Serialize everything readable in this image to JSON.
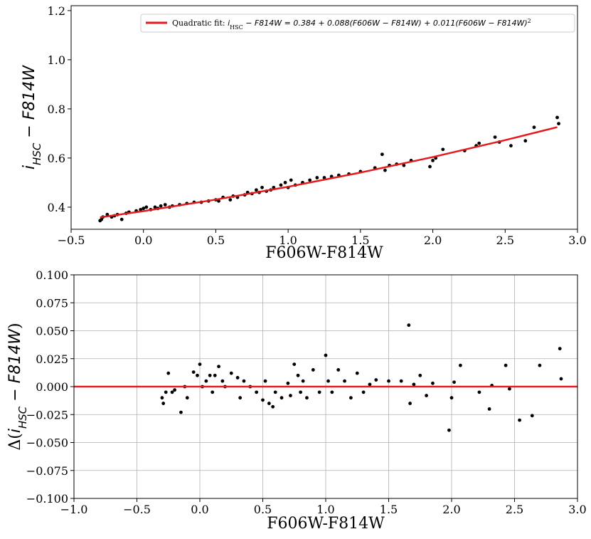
{
  "chart_data": [
    {
      "type": "scatter",
      "xlabel": "F606W-F814W",
      "ylabel_parts": [
        "i",
        "HSC",
        " − F814W"
      ],
      "xlim": [
        -0.5,
        3.0
      ],
      "ylim": [
        0.31,
        1.22
      ],
      "xticks": [
        {
          "value": -0.5,
          "label": "−0.5"
        },
        {
          "value": 0,
          "label": "0.0"
        },
        0.5,
        {
          "value": 1,
          "label": "1.0"
        },
        1.5,
        {
          "value": 2,
          "label": "2.0"
        },
        2.5,
        {
          "value": 3,
          "label": "3.0"
        }
      ],
      "yticks": [
        0.4,
        0.6,
        0.8,
        {
          "value": 1,
          "label": "1.0"
        },
        1.2
      ],
      "grid": false,
      "points": {
        "color": "#000000",
        "x": [
          -0.3,
          -0.29,
          -0.28,
          -0.25,
          -0.22,
          -0.2,
          -0.18,
          -0.15,
          -0.12,
          -0.1,
          -0.05,
          -0.02,
          0.0,
          0.02,
          0.05,
          0.08,
          0.1,
          0.12,
          0.15,
          0.18,
          0.2,
          0.25,
          0.3,
          0.35,
          0.4,
          0.45,
          0.5,
          0.52,
          0.55,
          0.6,
          0.62,
          0.65,
          0.7,
          0.72,
          0.75,
          0.78,
          0.8,
          0.82,
          0.85,
          0.88,
          0.9,
          0.95,
          0.98,
          1.0,
          1.02,
          1.05,
          1.1,
          1.15,
          1.2,
          1.25,
          1.3,
          1.35,
          1.42,
          1.5,
          1.6,
          1.65,
          1.67,
          1.7,
          1.75,
          1.8,
          1.85,
          1.98,
          2.0,
          2.02,
          2.07,
          2.22,
          2.3,
          2.32,
          2.43,
          2.46,
          2.54,
          2.64,
          2.7,
          2.86,
          2.87
        ],
        "values": [
          0.345,
          0.35,
          0.36,
          0.37,
          0.36,
          0.365,
          0.37,
          0.35,
          0.375,
          0.38,
          0.385,
          0.39,
          0.395,
          0.4,
          0.39,
          0.4,
          0.395,
          0.405,
          0.41,
          0.4,
          0.405,
          0.41,
          0.415,
          0.42,
          0.42,
          0.425,
          0.43,
          0.425,
          0.44,
          0.43,
          0.445,
          0.44,
          0.45,
          0.46,
          0.455,
          0.47,
          0.46,
          0.48,
          0.465,
          0.47,
          0.48,
          0.49,
          0.5,
          0.48,
          0.51,
          0.49,
          0.5,
          0.51,
          0.52,
          0.52,
          0.525,
          0.53,
          0.535,
          0.545,
          0.56,
          0.615,
          0.55,
          0.57,
          0.575,
          0.57,
          0.59,
          0.565,
          0.59,
          0.6,
          0.635,
          0.63,
          0.65,
          0.66,
          0.685,
          0.665,
          0.65,
          0.67,
          0.725,
          0.765,
          0.74
        ]
      },
      "fit": {
        "color": "#e41a1c",
        "legend_parts": [
          "Quadratic fit: ",
          "i",
          "HSC",
          " − F814W = 0.384 + 0.088(F606W − F814W) + 0.011(F606W − F814W)",
          "2"
        ],
        "x": [
          -0.3,
          0,
          0.5,
          1,
          1.5,
          2,
          2.5,
          2.86
        ],
        "values": [
          0.3586,
          0.384,
          0.4308,
          0.483,
          0.5408,
          0.604,
          0.6728,
          0.7257
        ]
      }
    },
    {
      "type": "scatter",
      "xlabel": "F606W-F814W",
      "ylabel_parts": [
        "Δ(",
        "i",
        "HSC",
        " − F814W",
        ")"
      ],
      "xlim": [
        -1.0,
        3.0
      ],
      "ylim": [
        -0.1,
        0.1
      ],
      "xticks": [
        {
          "value": -1,
          "label": "−1.0"
        },
        {
          "value": -0.5,
          "label": "−0.5"
        },
        {
          "value": 0,
          "label": "0.0"
        },
        0.5,
        {
          "value": 1,
          "label": "1.0"
        },
        1.5,
        {
          "value": 2,
          "label": "2.0"
        },
        2.5,
        {
          "value": 3,
          "label": "3.0"
        }
      ],
      "yticks": [
        {
          "value": -0.1,
          "label": "−0.100"
        },
        {
          "value": -0.075,
          "label": "−0.075"
        },
        {
          "value": -0.05,
          "label": "−0.050"
        },
        {
          "value": -0.025,
          "label": "−0.025"
        },
        {
          "value": 0,
          "label": "0.000"
        },
        0.025,
        {
          "value": 0.05,
          "label": "0.050"
        },
        0.075,
        {
          "value": 0.1,
          "label": "0.100"
        }
      ],
      "grid": true,
      "points": {
        "color": "#000000",
        "x": [
          -0.3,
          -0.29,
          -0.27,
          -0.25,
          -0.22,
          -0.2,
          -0.15,
          -0.12,
          -0.1,
          -0.05,
          -0.02,
          0.0,
          0.02,
          0.05,
          0.08,
          0.1,
          0.12,
          0.15,
          0.18,
          0.2,
          0.25,
          0.3,
          0.32,
          0.35,
          0.4,
          0.45,
          0.5,
          0.52,
          0.55,
          0.58,
          0.6,
          0.65,
          0.7,
          0.72,
          0.75,
          0.78,
          0.8,
          0.82,
          0.85,
          0.9,
          0.95,
          1.0,
          1.02,
          1.05,
          1.1,
          1.15,
          1.2,
          1.25,
          1.3,
          1.35,
          1.4,
          1.5,
          1.6,
          1.66,
          1.67,
          1.7,
          1.75,
          1.8,
          1.85,
          1.98,
          2.0,
          2.02,
          2.07,
          2.22,
          2.3,
          2.32,
          2.43,
          2.46,
          2.54,
          2.64,
          2.7,
          2.86,
          2.87
        ],
        "values": [
          -0.01,
          -0.015,
          -0.005,
          0.012,
          -0.005,
          -0.003,
          -0.023,
          0.0,
          -0.01,
          0.013,
          0.01,
          0.02,
          0.0,
          0.005,
          0.01,
          -0.005,
          0.01,
          0.018,
          0.005,
          0.0,
          0.012,
          0.008,
          -0.01,
          0.005,
          0.0,
          -0.005,
          -0.012,
          0.005,
          -0.015,
          -0.018,
          -0.005,
          -0.01,
          0.003,
          -0.008,
          0.02,
          0.01,
          -0.005,
          0.005,
          -0.01,
          0.015,
          -0.005,
          0.028,
          0.005,
          -0.005,
          0.015,
          0.005,
          -0.01,
          0.012,
          -0.005,
          0.002,
          0.006,
          0.005,
          0.005,
          0.055,
          -0.015,
          0.002,
          0.01,
          -0.008,
          0.003,
          -0.039,
          -0.01,
          0.004,
          0.019,
          -0.005,
          -0.02,
          0.001,
          0.019,
          -0.002,
          -0.03,
          -0.026,
          0.019,
          0.034,
          0.007
        ]
      },
      "fit": {
        "color": "#e41a1c",
        "x": [
          -1.0,
          3.0
        ],
        "values": [
          0,
          0
        ]
      }
    }
  ]
}
